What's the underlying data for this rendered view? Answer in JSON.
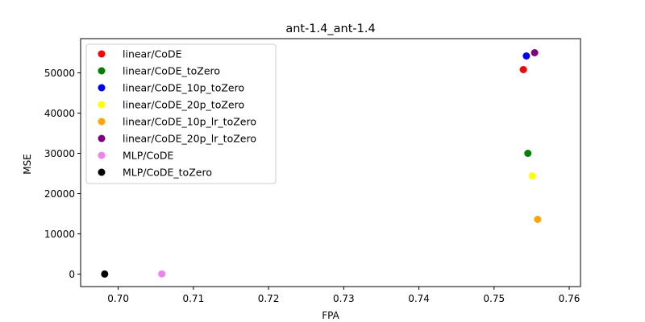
{
  "chart_data": {
    "type": "scatter",
    "title": "ant-1.4_ant-1.4",
    "xlabel": "FPA",
    "ylabel": "MSE",
    "xlim": [
      0.695,
      0.7615
    ],
    "ylim": [
      -3100,
      58500
    ],
    "xticks": [
      0.7,
      0.71,
      0.72,
      0.73,
      0.74,
      0.75,
      0.76
    ],
    "xtick_labels": [
      "0.70",
      "0.71",
      "0.72",
      "0.73",
      "0.74",
      "0.75",
      "0.76"
    ],
    "yticks": [
      0,
      10000,
      20000,
      30000,
      40000,
      50000
    ],
    "ytick_labels": [
      "0",
      "10000",
      "20000",
      "30000",
      "40000",
      "50000"
    ],
    "legend_position": "upper-left",
    "series": [
      {
        "name": "linear/CoDE",
        "color": "#ff0000",
        "x": 0.7539,
        "y": 50800
      },
      {
        "name": "linear/CoDE_toZero",
        "color": "#008000",
        "x": 0.7545,
        "y": 30000
      },
      {
        "name": "linear/CoDE_10p_toZero",
        "color": "#0000ff",
        "x": 0.7543,
        "y": 54200
      },
      {
        "name": "linear/CoDE_20p_toZero",
        "color": "#ffff00",
        "x": 0.7551,
        "y": 24400
      },
      {
        "name": "linear/CoDE_10p_lr_toZero",
        "color": "#ffa500",
        "x": 0.7558,
        "y": 13600
      },
      {
        "name": "linear/CoDE_20p_lr_toZero",
        "color": "#800080",
        "x": 0.7554,
        "y": 55000
      },
      {
        "name": "MLP/CoDE",
        "color": "#ee82ee",
        "x": 0.7058,
        "y": 50
      },
      {
        "name": "MLP/CoDE_toZero",
        "color": "#000000",
        "x": 0.6982,
        "y": 20
      }
    ]
  }
}
